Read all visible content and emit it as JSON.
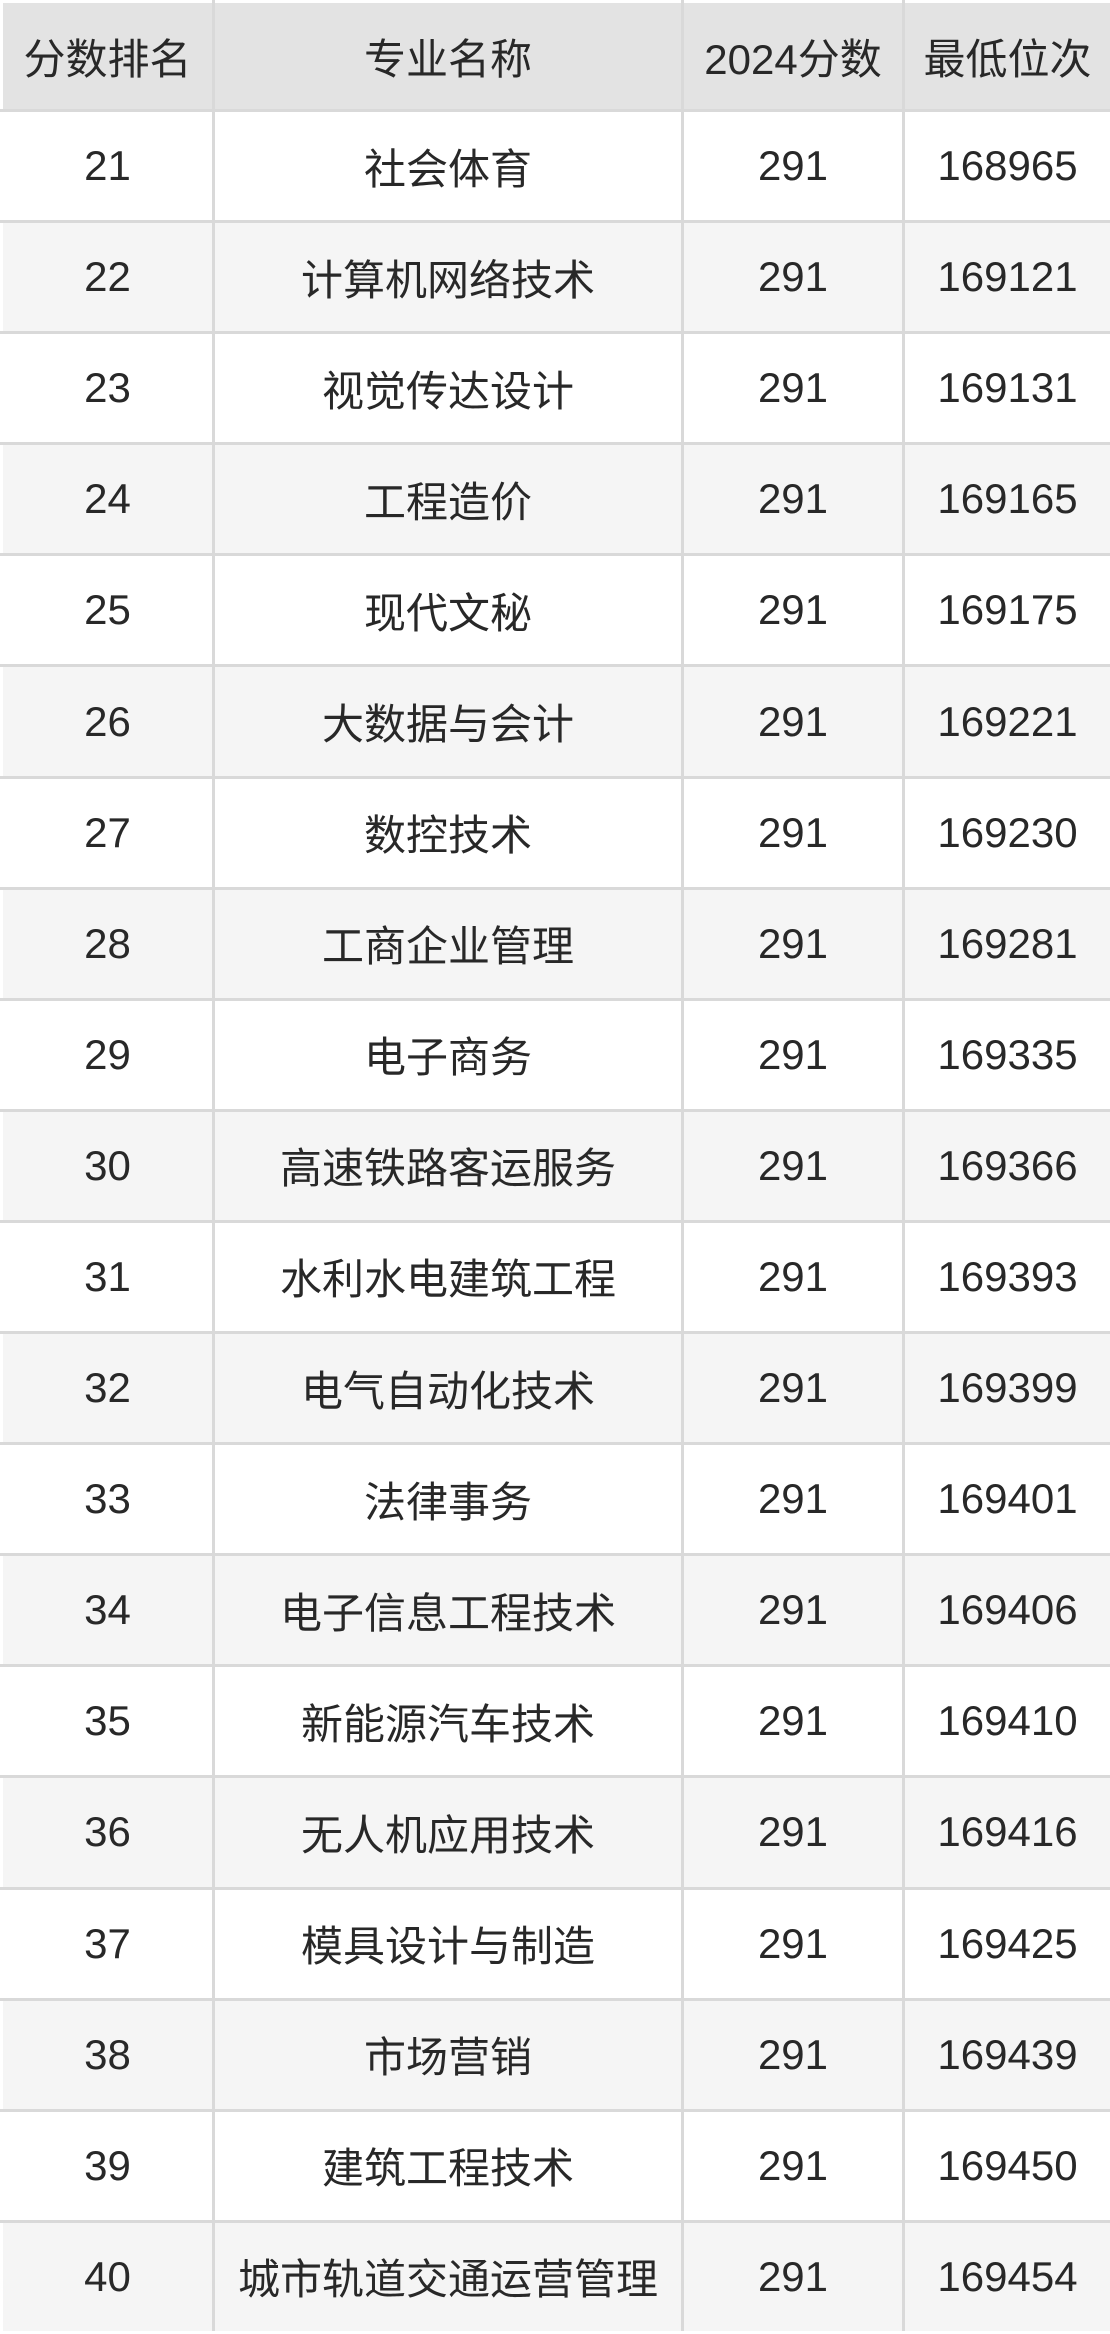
{
  "colors": {
    "header_bg": "#e3e3e3",
    "row_bg": "#ffffff",
    "row_alt_bg": "#f5f5f5",
    "grid": "#d9d9d9",
    "text": "#282828"
  },
  "table": {
    "columns": [
      "分数排名",
      "专业名称",
      "2024分数",
      "最低位次"
    ],
    "rows": [
      {
        "rank": "21",
        "major": "社会体育",
        "score": "291",
        "min_rank": "168965"
      },
      {
        "rank": "22",
        "major": "计算机网络技术",
        "score": "291",
        "min_rank": "169121"
      },
      {
        "rank": "23",
        "major": "视觉传达设计",
        "score": "291",
        "min_rank": "169131"
      },
      {
        "rank": "24",
        "major": "工程造价",
        "score": "291",
        "min_rank": "169165"
      },
      {
        "rank": "25",
        "major": "现代文秘",
        "score": "291",
        "min_rank": "169175"
      },
      {
        "rank": "26",
        "major": "大数据与会计",
        "score": "291",
        "min_rank": "169221"
      },
      {
        "rank": "27",
        "major": "数控技术",
        "score": "291",
        "min_rank": "169230"
      },
      {
        "rank": "28",
        "major": "工商企业管理",
        "score": "291",
        "min_rank": "169281"
      },
      {
        "rank": "29",
        "major": "电子商务",
        "score": "291",
        "min_rank": "169335"
      },
      {
        "rank": "30",
        "major": "高速铁路客运服务",
        "score": "291",
        "min_rank": "169366"
      },
      {
        "rank": "31",
        "major": "水利水电建筑工程",
        "score": "291",
        "min_rank": "169393"
      },
      {
        "rank": "32",
        "major": "电气自动化技术",
        "score": "291",
        "min_rank": "169399"
      },
      {
        "rank": "33",
        "major": "法律事务",
        "score": "291",
        "min_rank": "169401"
      },
      {
        "rank": "34",
        "major": "电子信息工程技术",
        "score": "291",
        "min_rank": "169406"
      },
      {
        "rank": "35",
        "major": "新能源汽车技术",
        "score": "291",
        "min_rank": "169410"
      },
      {
        "rank": "36",
        "major": "无人机应用技术",
        "score": "291",
        "min_rank": "169416"
      },
      {
        "rank": "37",
        "major": "模具设计与制造",
        "score": "291",
        "min_rank": "169425"
      },
      {
        "rank": "38",
        "major": "市场营销",
        "score": "291",
        "min_rank": "169439"
      },
      {
        "rank": "39",
        "major": "建筑工程技术",
        "score": "291",
        "min_rank": "169450"
      },
      {
        "rank": "40",
        "major": "城市轨道交通运营管理",
        "score": "291",
        "min_rank": "169454"
      }
    ]
  },
  "chart_data": {
    "type": "table",
    "title": "",
    "columns": [
      "分数排名",
      "专业名称",
      "2024分数",
      "最低位次"
    ],
    "rows": [
      [
        21,
        "社会体育",
        291,
        168965
      ],
      [
        22,
        "计算机网络技术",
        291,
        169121
      ],
      [
        23,
        "视觉传达设计",
        291,
        169131
      ],
      [
        24,
        "工程造价",
        291,
        169165
      ],
      [
        25,
        "现代文秘",
        291,
        169175
      ],
      [
        26,
        "大数据与会计",
        291,
        169221
      ],
      [
        27,
        "数控技术",
        291,
        169230
      ],
      [
        28,
        "工商企业管理",
        291,
        169281
      ],
      [
        29,
        "电子商务",
        291,
        169335
      ],
      [
        30,
        "高速铁路客运服务",
        291,
        169366
      ],
      [
        31,
        "水利水电建筑工程",
        291,
        169393
      ],
      [
        32,
        "电气自动化技术",
        291,
        169399
      ],
      [
        33,
        "法律事务",
        291,
        169401
      ],
      [
        34,
        "电子信息工程技术",
        291,
        169406
      ],
      [
        35,
        "新能源汽车技术",
        291,
        169410
      ],
      [
        36,
        "无人机应用技术",
        291,
        169416
      ],
      [
        37,
        "模具设计与制造",
        291,
        169425
      ],
      [
        38,
        "市场营销",
        291,
        169439
      ],
      [
        39,
        "建筑工程技术",
        291,
        169450
      ],
      [
        40,
        "城市轨道交通运营管理",
        291,
        169454
      ]
    ]
  }
}
